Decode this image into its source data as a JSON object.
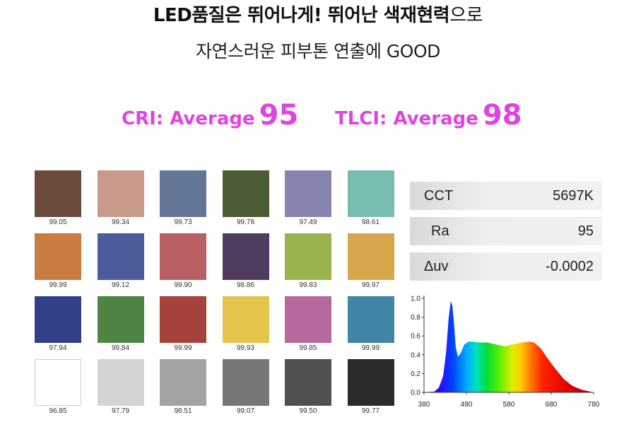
{
  "headline": {
    "bold_part": "LED품질은 뛰어나게! 뛰어난 색재현력",
    "light_part": "으로"
  },
  "subline": "자연스러운 피부톤 연출에 GOOD",
  "cri": {
    "label": "CRI: Average",
    "value": "95"
  },
  "tlci": {
    "label": "TLCI: Average",
    "value": "98"
  },
  "swatches": [
    {
      "color": "#6b4a3c",
      "value": "99.05"
    },
    {
      "color": "#c9998a",
      "value": "99.34"
    },
    {
      "color": "#637697",
      "value": "99.73"
    },
    {
      "color": "#4b5c34",
      "value": "99.78"
    },
    {
      "color": "#8785b0",
      "value": "97.49"
    },
    {
      "color": "#79bdb0",
      "value": "98.61"
    },
    {
      "color": "#c97c40",
      "value": "99.99"
    },
    {
      "color": "#4c5b9c",
      "value": "99.12"
    },
    {
      "color": "#b86064",
      "value": "99.90"
    },
    {
      "color": "#4f3c5e",
      "value": "98.86"
    },
    {
      "color": "#9ab34e",
      "value": "99.83"
    },
    {
      "color": "#d6a64a",
      "value": "99.97"
    },
    {
      "color": "#343f8a",
      "value": "97.94"
    },
    {
      "color": "#4e8444",
      "value": "99.84"
    },
    {
      "color": "#a6423c",
      "value": "99.99"
    },
    {
      "color": "#e3c54c",
      "value": "99.93"
    },
    {
      "color": "#b4689c",
      "value": "99.85"
    },
    {
      "color": "#3f85a4",
      "value": "99.99"
    },
    {
      "color": "#ffffff",
      "value": "96.85"
    },
    {
      "color": "#d4d4d4",
      "value": "97.79"
    },
    {
      "color": "#a3a3a3",
      "value": "98.51"
    },
    {
      "color": "#777777",
      "value": "99.07"
    },
    {
      "color": "#505050",
      "value": "99.50"
    },
    {
      "color": "#2a2a2a",
      "value": "99.77"
    }
  ],
  "readouts": [
    {
      "key": "CCT",
      "value": "5697K"
    },
    {
      "key": "Ra",
      "value": "95"
    },
    {
      "key": "Δuv",
      "value": "-0.0002"
    }
  ],
  "chart_data": {
    "type": "area",
    "title": "",
    "xlabel": "",
    "ylabel": "",
    "xlim": [
      380,
      780
    ],
    "ylim": [
      0,
      1.0
    ],
    "x_ticks": [
      "380",
      "480",
      "580",
      "680",
      "780"
    ],
    "y_ticks": [
      "0.0",
      "0.2",
      "0.4",
      "0.6",
      "0.8",
      "1.0"
    ],
    "grid": false,
    "x": [
      380,
      405,
      415,
      425,
      432,
      438,
      443,
      447,
      451,
      455,
      460,
      467,
      475,
      485,
      495,
      510,
      530,
      550,
      570,
      590,
      610,
      630,
      640,
      655,
      670,
      690,
      710,
      730,
      750,
      770,
      780
    ],
    "values": [
      0.0,
      0.01,
      0.05,
      0.17,
      0.42,
      0.78,
      0.97,
      0.92,
      0.72,
      0.48,
      0.38,
      0.42,
      0.51,
      0.54,
      0.54,
      0.53,
      0.53,
      0.51,
      0.49,
      0.51,
      0.53,
      0.54,
      0.53,
      0.47,
      0.37,
      0.25,
      0.14,
      0.07,
      0.03,
      0.01,
      0.0
    ]
  }
}
